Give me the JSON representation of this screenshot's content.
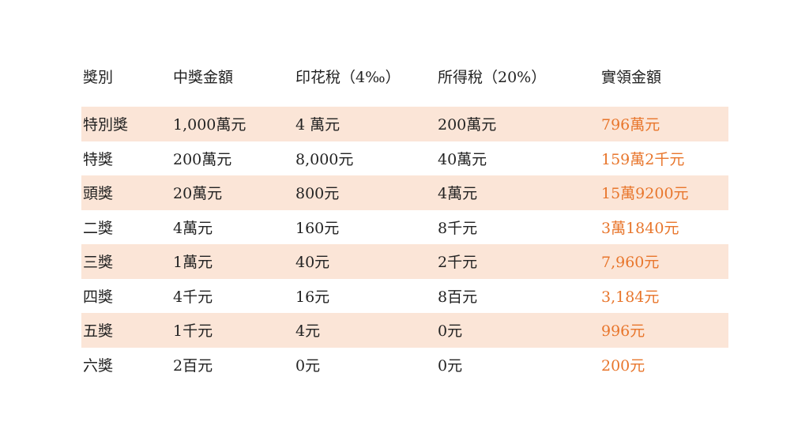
{
  "table": {
    "headers": [
      "獎別",
      "中獎金額",
      "印花稅（4‰）",
      "所得稅（20%）",
      "實領金額"
    ],
    "rows": [
      [
        "特別獎",
        "1,000萬元",
        "4 萬元",
        "200萬元",
        "796萬元"
      ],
      [
        "特獎",
        "200萬元",
        "8,000元",
        "40萬元",
        "159萬2千元"
      ],
      [
        "頭獎",
        "20萬元",
        "800元",
        "4萬元",
        "15萬9200元"
      ],
      [
        "二獎",
        "4萬元",
        "160元",
        "8千元",
        "3萬1840元"
      ],
      [
        "三獎",
        "1萬元",
        "40元",
        "2千元",
        "7,960元"
      ],
      [
        "四獎",
        "4千元",
        "16元",
        "8百元",
        "3,184元"
      ],
      [
        "五獎",
        "1千元",
        "4元",
        "0元",
        "996元"
      ],
      [
        "六獎",
        "2百元",
        "0元",
        "0元",
        "200元"
      ]
    ]
  },
  "colors": {
    "row_shade": "#fbe5d7",
    "net_amount": "#e8762c",
    "text": "#222222"
  }
}
